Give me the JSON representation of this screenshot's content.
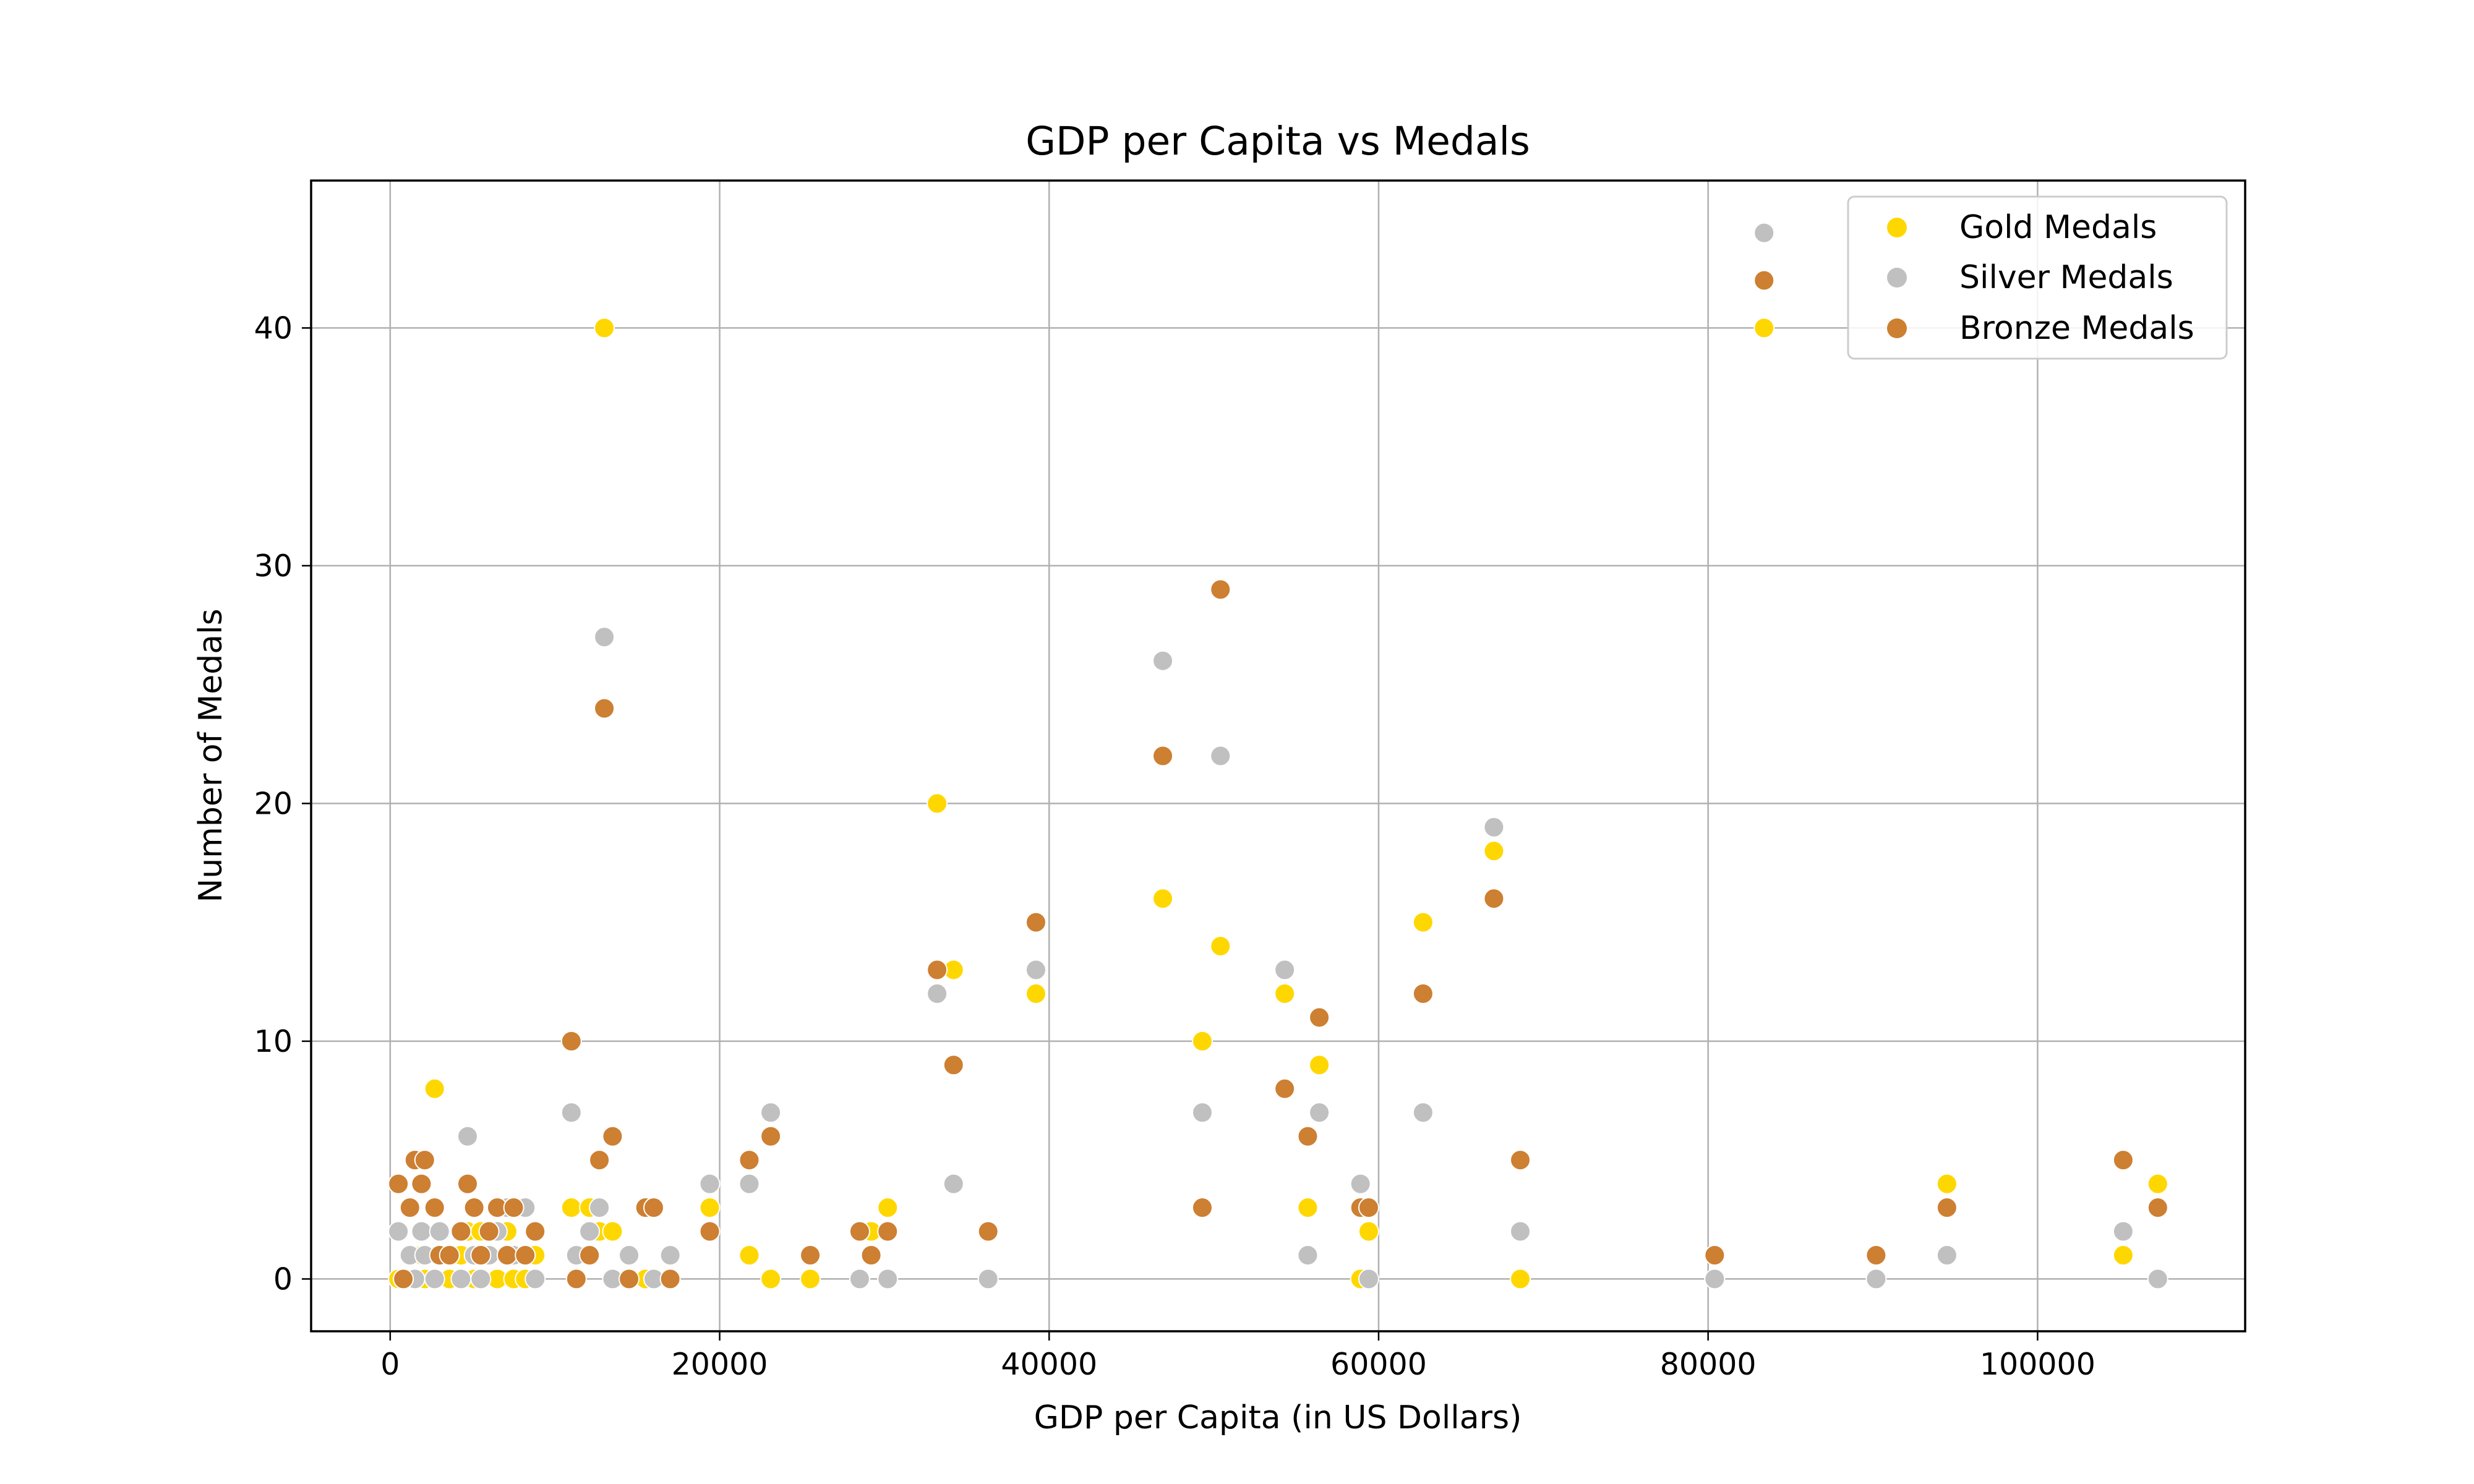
{
  "chart_data": {
    "type": "scatter",
    "title": "GDP per Capita vs Medals",
    "xlabel": "GDP per Capita (in US Dollars)",
    "ylabel": "Number of Medals",
    "xlim": [
      -4800,
      112600
    ],
    "ylim": [
      -2.2,
      46.2
    ],
    "xticks": [
      0,
      20000,
      40000,
      60000,
      80000,
      100000
    ],
    "yticks": [
      0,
      10,
      20,
      30,
      40
    ],
    "xtick_labels": [
      "0",
      "20000",
      "40000",
      "60000",
      "80000",
      "100000"
    ],
    "ytick_labels": [
      "0",
      "10",
      "20",
      "30",
      "40"
    ],
    "grid": true,
    "legend_position": "top-right",
    "colors": {
      "gold": "#FFD700",
      "silver": "#C0C0C0",
      "bronze": "#CD7F32"
    },
    "x": [
      500,
      800,
      1200,
      1500,
      1900,
      2100,
      2700,
      3000,
      3600,
      4300,
      4700,
      5100,
      5500,
      6000,
      6500,
      7100,
      7500,
      8200,
      8800,
      11000,
      11300,
      12100,
      12700,
      13000,
      13500,
      14500,
      15500,
      16000,
      17000,
      19400,
      21800,
      23100,
      25500,
      28500,
      29200,
      30200,
      33200,
      34200,
      36300,
      39200,
      46900,
      49300,
      50400,
      54300,
      55700,
      56400,
      58900,
      59400,
      62700,
      67000,
      68600,
      80400,
      90200,
      94500,
      105200,
      107300,
      83400
    ],
    "series": [
      {
        "name": "Gold Medals",
        "values": [
          0,
          0,
          1,
          0,
          1,
          0,
          8,
          1,
          0,
          1,
          2,
          0,
          2,
          1,
          0,
          2,
          0,
          0,
          1,
          3,
          1,
          3,
          2,
          40,
          2,
          1,
          0,
          0,
          0,
          3,
          1,
          0,
          0,
          0,
          2,
          3,
          20,
          13,
          0,
          12,
          16,
          10,
          14,
          12,
          3,
          9,
          0,
          2,
          15,
          18,
          0,
          0,
          0,
          4,
          1,
          4,
          40
        ]
      },
      {
        "name": "Silver Medals",
        "values": [
          2,
          0,
          1,
          0,
          2,
          1,
          0,
          2,
          1,
          0,
          6,
          1,
          0,
          1,
          2,
          3,
          1,
          3,
          0,
          7,
          1,
          2,
          3,
          27,
          0,
          1,
          3,
          0,
          1,
          4,
          4,
          7,
          1,
          0,
          1,
          0,
          12,
          4,
          0,
          13,
          26,
          7,
          22,
          13,
          1,
          7,
          4,
          0,
          7,
          19,
          2,
          0,
          0,
          1,
          2,
          0,
          44
        ]
      },
      {
        "name": "Bronze Medals",
        "values": [
          4,
          0,
          3,
          5,
          4,
          5,
          3,
          1,
          1,
          2,
          4,
          3,
          1,
          2,
          3,
          1,
          3,
          1,
          2,
          10,
          0,
          1,
          5,
          24,
          6,
          0,
          3,
          3,
          0,
          2,
          5,
          6,
          1,
          2,
          1,
          2,
          13,
          9,
          2,
          15,
          22,
          3,
          29,
          8,
          6,
          11,
          3,
          3,
          12,
          16,
          5,
          1,
          1,
          3,
          5,
          3,
          42
        ]
      }
    ]
  }
}
